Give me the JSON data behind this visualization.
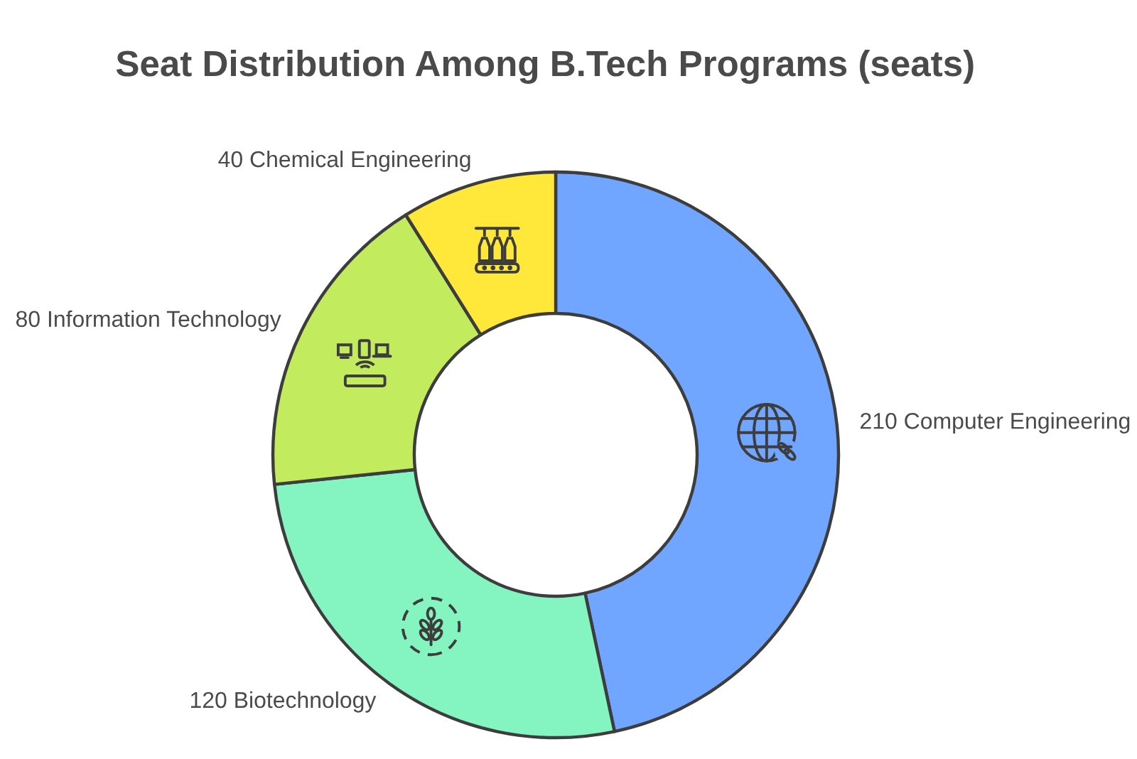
{
  "chart_data": {
    "type": "donut",
    "title": "Seat Distribution Among B.Tech Programs (seats)",
    "categories": [
      "Computer Engineering",
      "Biotechnology",
      "Information Technology",
      "Chemical Engineering"
    ],
    "values": [
      210,
      120,
      80,
      40
    ],
    "colors": [
      "#70a6ff",
      "#84f5c1",
      "#c2ec5e",
      "#ffe83a"
    ],
    "data_labels": true
  }
}
